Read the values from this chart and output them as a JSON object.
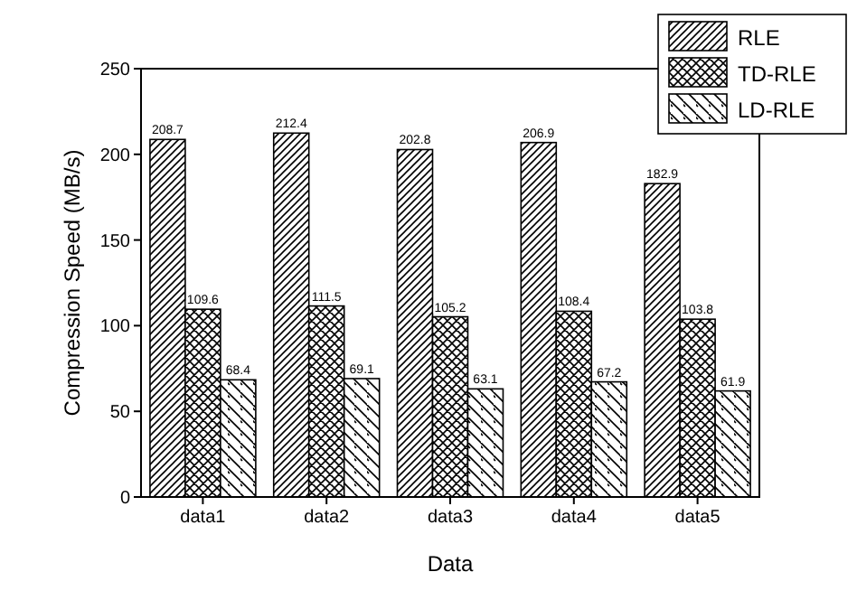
{
  "chart_data": {
    "type": "bar",
    "xlabel": "Data",
    "ylabel": "Compression Speed (MB/s)",
    "categories": [
      "data1",
      "data2",
      "data3",
      "data4",
      "data5"
    ],
    "series": [
      {
        "name": "RLE",
        "color": "#000000",
        "values": [
          208.7,
          212.4,
          202.8,
          206.9,
          182.9
        ]
      },
      {
        "name": "TD-RLE",
        "color": "#000000",
        "values": [
          109.6,
          111.5,
          105.2,
          108.4,
          103.8
        ]
      },
      {
        "name": "LD-RLE",
        "color": "#000000",
        "values": [
          68.4,
          69.1,
          63.1,
          67.2,
          61.9
        ]
      }
    ],
    "ylim": [
      0,
      250
    ],
    "yticks": [
      0,
      50,
      100,
      150,
      200,
      250
    ],
    "data_labels": true,
    "legend": "top right",
    "grid": false
  }
}
